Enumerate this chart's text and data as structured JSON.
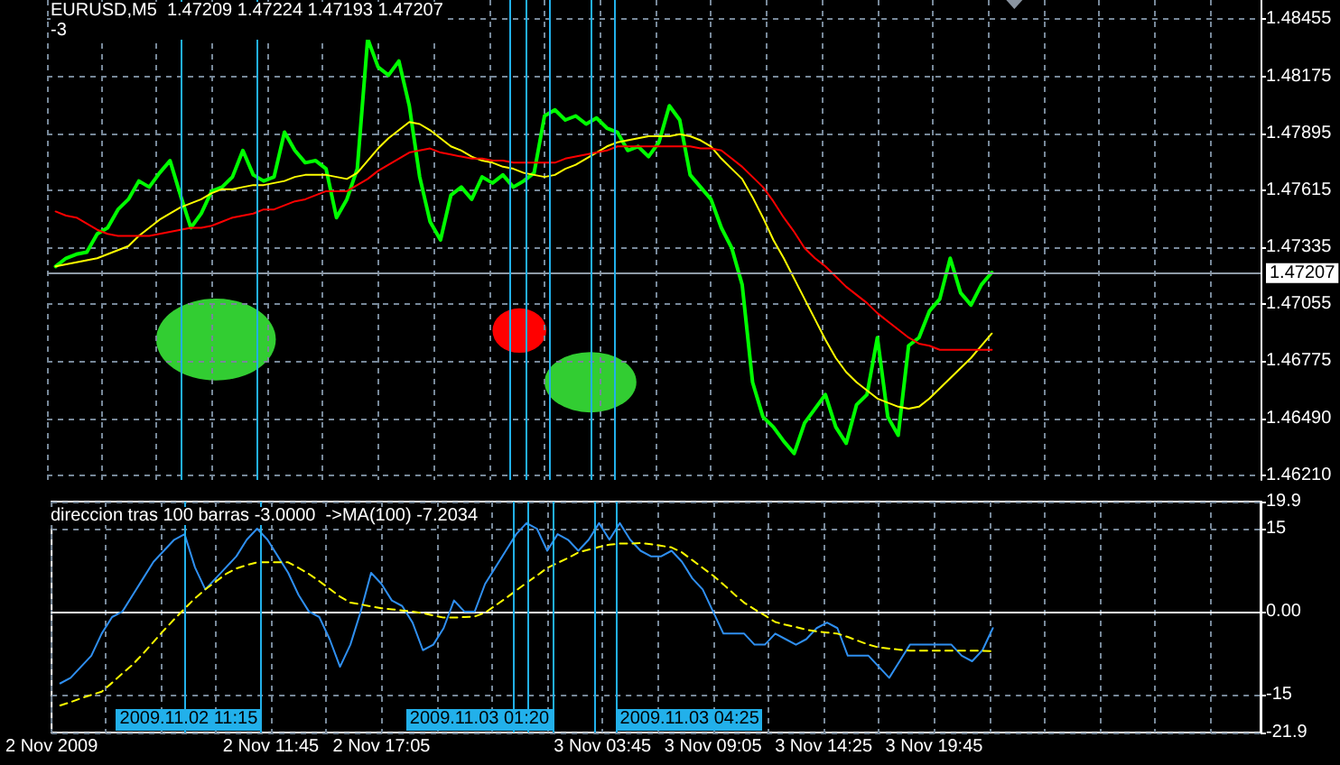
{
  "chart_data": [
    {
      "type": "line",
      "title": "EURUSD,M5  1.47209 1.47224 1.47193 1.47207",
      "subtitle": "-3",
      "x": [
        "2009-11-02T01:35",
        "2009-11-02T02:05",
        "2009-11-02T02:35",
        "2009-11-02T03:05",
        "2009-11-02T03:35",
        "2009-11-02T04:05",
        "2009-11-02T04:35",
        "2009-11-02T05:05",
        "2009-11-02T05:35",
        "2009-11-02T06:05",
        "2009-11-02T06:35",
        "2009-11-02T07:05",
        "2009-11-02T07:35",
        "2009-11-02T08:05",
        "2009-11-02T08:35",
        "2009-11-02T09:05",
        "2009-11-02T09:35",
        "2009-11-02T10:05",
        "2009-11-02T10:35",
        "2009-11-02T11:05",
        "2009-11-02T11:35",
        "2009-11-02T12:05",
        "2009-11-02T12:35",
        "2009-11-02T13:05",
        "2009-11-02T13:35",
        "2009-11-02T14:05",
        "2009-11-02T14:35",
        "2009-11-02T15:05",
        "2009-11-02T15:35",
        "2009-11-02T16:05",
        "2009-11-02T16:35",
        "2009-11-02T17:05",
        "2009-11-02T17:35",
        "2009-11-02T18:05",
        "2009-11-02T18:35",
        "2009-11-02T19:05",
        "2009-11-02T19:35",
        "2009-11-02T20:05",
        "2009-11-02T20:35",
        "2009-11-02T21:05",
        "2009-11-02T21:35",
        "2009-11-02T22:05",
        "2009-11-02T22:35",
        "2009-11-02T23:05",
        "2009-11-02T23:35",
        "2009-11-03T00:05",
        "2009-11-03T00:35",
        "2009-11-03T01:05",
        "2009-11-03T01:35",
        "2009-11-03T02:05",
        "2009-11-03T02:35",
        "2009-11-03T03:05",
        "2009-11-03T03:35",
        "2009-11-03T04:05",
        "2009-11-03T04:35",
        "2009-11-03T05:05",
        "2009-11-03T05:35",
        "2009-11-03T06:05",
        "2009-11-03T06:35",
        "2009-11-03T07:05",
        "2009-11-03T07:35",
        "2009-11-03T08:05",
        "2009-11-03T08:35",
        "2009-11-03T09:05",
        "2009-11-03T09:35",
        "2009-11-03T10:05",
        "2009-11-03T10:35",
        "2009-11-03T11:05",
        "2009-11-03T11:35",
        "2009-11-03T12:05",
        "2009-11-03T12:35",
        "2009-11-03T13:05",
        "2009-11-03T13:35",
        "2009-11-03T14:05",
        "2009-11-03T14:35",
        "2009-11-03T15:05",
        "2009-11-03T15:35",
        "2009-11-03T16:05",
        "2009-11-03T16:35",
        "2009-11-03T17:05",
        "2009-11-03T17:35",
        "2009-11-03T18:05",
        "2009-11-03T18:35",
        "2009-11-03T19:05",
        "2009-11-03T19:35",
        "2009-11-03T20:05",
        "2009-11-03T20:35",
        "2009-11-03T21:05",
        "2009-11-03T21:35",
        "2009-11-03T22:05",
        "2009-11-03T22:35"
      ],
      "series": [
        {
          "color": "#00ff00",
          "values": [
            1.4724,
            1.4728,
            1.473,
            1.4731,
            1.474,
            1.4743,
            1.4752,
            1.4757,
            1.4766,
            1.4763,
            1.477,
            1.4776,
            1.4759,
            1.4743,
            1.475,
            1.4761,
            1.4763,
            1.4768,
            1.4781,
            1.4769,
            1.4766,
            1.4768,
            1.479,
            1.4781,
            1.4775,
            1.4776,
            1.4772,
            1.4748,
            1.4757,
            1.4772,
            1.4836,
            1.4822,
            1.4818,
            1.4825,
            1.4803,
            1.4768,
            1.4746,
            1.4737,
            1.4759,
            1.4763,
            1.4757,
            1.4768,
            1.4765,
            1.4769,
            1.4763,
            1.4766,
            1.477,
            1.4798,
            1.4801,
            1.4796,
            1.4798,
            1.4794,
            1.4797,
            1.4792,
            1.479,
            1.4781,
            1.4783,
            1.4778,
            1.4785,
            1.4803,
            1.4796,
            1.4769,
            1.4763,
            1.4757,
            1.4743,
            1.4733,
            1.4715,
            1.4667,
            1.465,
            1.4645,
            1.4638,
            1.4632,
            1.4647,
            1.4654,
            1.4661,
            1.4645,
            1.4637,
            1.4656,
            1.4661,
            1.4689,
            1.465,
            1.4641,
            1.4685,
            1.4689,
            1.4702,
            1.4708,
            1.4728,
            1.4711,
            1.4705,
            1.4715,
            1.4721
          ]
        },
        {
          "color": "#ffff00",
          "values": [
            1.4724,
            1.4725,
            1.4726,
            1.4727,
            1.4728,
            1.473,
            1.4732,
            1.4734,
            1.4739,
            1.4743,
            1.4747,
            1.475,
            1.4753,
            1.4755,
            1.4757,
            1.476,
            1.4762,
            1.4762,
            1.4763,
            1.4764,
            1.4764,
            1.4765,
            1.4766,
            1.4768,
            1.4769,
            1.4769,
            1.4769,
            1.4768,
            1.4767,
            1.477,
            1.4776,
            1.4782,
            1.4787,
            1.4791,
            1.4795,
            1.4794,
            1.4791,
            1.4787,
            1.4783,
            1.4781,
            1.4778,
            1.4776,
            1.4775,
            1.4773,
            1.4772,
            1.477,
            1.4769,
            1.4768,
            1.4769,
            1.4772,
            1.4774,
            1.4777,
            1.478,
            1.4783,
            1.4785,
            1.4786,
            1.4787,
            1.4788,
            1.4788,
            1.4788,
            1.4789,
            1.4788,
            1.4786,
            1.4783,
            1.4777,
            1.4772,
            1.4767,
            1.4758,
            1.4748,
            1.4737,
            1.4728,
            1.4718,
            1.4708,
            1.4698,
            1.4688,
            1.4679,
            1.4672,
            1.4667,
            1.4663,
            1.4659,
            1.4657,
            1.4655,
            1.4654,
            1.4655,
            1.4659,
            1.4664,
            1.4669,
            1.4674,
            1.4679,
            1.4685,
            1.4691
          ]
        },
        {
          "color": "#ff0000",
          "values": [
            1.4751,
            1.4749,
            1.4748,
            1.4745,
            1.4742,
            1.474,
            1.4739,
            1.4739,
            1.4739,
            1.4739,
            1.474,
            1.4741,
            1.4742,
            1.4743,
            1.4743,
            1.4744,
            1.4746,
            1.4748,
            1.4749,
            1.475,
            1.4752,
            1.4752,
            1.4754,
            1.4756,
            1.4757,
            1.4759,
            1.4761,
            1.4761,
            1.4761,
            1.4764,
            1.4767,
            1.4771,
            1.4774,
            1.4777,
            1.478,
            1.4781,
            1.4782,
            1.478,
            1.4779,
            1.4778,
            1.4777,
            1.4777,
            1.4776,
            1.4776,
            1.4775,
            1.4775,
            1.4775,
            1.4775,
            1.4775,
            1.4777,
            1.4778,
            1.4779,
            1.478,
            1.4781,
            1.4783,
            1.4783,
            1.4783,
            1.4783,
            1.4783,
            1.4783,
            1.4783,
            1.4783,
            1.4782,
            1.4782,
            1.4781,
            1.4777,
            1.4773,
            1.4768,
            1.4763,
            1.4756,
            1.4748,
            1.4741,
            1.4733,
            1.4728,
            1.4724,
            1.4719,
            1.4714,
            1.471,
            1.4706,
            1.4701,
            1.4697,
            1.4693,
            1.4689,
            1.4686,
            1.4685,
            1.4683,
            1.4683,
            1.4683,
            1.4683,
            1.4683,
            1.4683
          ]
        }
      ],
      "xlim": [
        "2009-11-02T01:10",
        "2009-11-04T11:30"
      ],
      "xticks": [
        {
          "value": "2009-11-02T01:10",
          "label": null
        },
        {
          "value": "2009-11-02T03:45",
          "label": null
        },
        {
          "value": "2009-11-02T06:25",
          "label": null
        },
        {
          "value": "2009-11-02T09:05",
          "label": null
        },
        {
          "value": "2009-11-02T11:45",
          "label": null
        },
        {
          "value": "2009-11-02T14:25",
          "label": null
        },
        {
          "value": "2009-11-02T17:05",
          "label": null
        },
        {
          "value": "2009-11-02T19:45",
          "label": null
        },
        {
          "value": "2009-11-02T22:25",
          "label": null
        },
        {
          "value": "2009-11-03T01:05",
          "label": null
        },
        {
          "value": "2009-11-03T03:45",
          "label": null
        },
        {
          "value": "2009-11-03T06:25",
          "label": null
        },
        {
          "value": "2009-11-03T09:05",
          "label": null
        },
        {
          "value": "2009-11-03T11:45",
          "label": null
        },
        {
          "value": "2009-11-03T14:25",
          "label": null
        },
        {
          "value": "2009-11-03T17:05",
          "label": null
        },
        {
          "value": "2009-11-03T19:45",
          "label": null
        },
        {
          "value": "2009-11-03T22:25",
          "label": null
        },
        {
          "value": "2009-11-04T01:05",
          "label": null
        },
        {
          "value": "2009-11-04T03:45",
          "label": null
        },
        {
          "value": "2009-11-04T06:25",
          "label": null
        },
        {
          "value": "2009-11-04T09:05",
          "label": null
        }
      ],
      "ylim": [
        1.4619,
        1.4855
      ],
      "yticks": [
        {
          "value": 1.4621,
          "label": "1.46210"
        },
        {
          "value": 1.4649,
          "label": "1.46490"
        },
        1.46775,
        1.47055,
        1.47335,
        1.47615,
        1.47895,
        1.48175,
        1.48455
      ],
      "ref_lines": [
        {
          "axis": "y",
          "value": 1.47207,
          "label": "1.47207",
          "color": "#8e9aa6"
        },
        {
          "axis": "x",
          "value": "2009-11-02T07:35",
          "color": "#22b0ea"
        },
        {
          "axis": "x",
          "value": "2009-11-02T11:15",
          "color": "#22b0ea"
        },
        {
          "axis": "x",
          "value": "2009-11-02T23:25",
          "color": "#22b0ea"
        },
        {
          "axis": "x",
          "value": "2009-11-03T00:10",
          "color": "#22b0ea"
        },
        {
          "axis": "x",
          "value": "2009-11-03T01:20",
          "color": "#22b0ea"
        },
        {
          "axis": "x",
          "value": "2009-11-03T03:20",
          "color": "#22b0ea"
        },
        {
          "axis": "x",
          "value": "2009-11-03T04:25",
          "color": "#22b0ea"
        }
      ],
      "grid": true,
      "marker": "none",
      "tick_labels": "y"
    },
    {
      "type": "line",
      "title": "direccion tras 100 barras -3.0000  ->MA(100) -7.2034",
      "x": [
        "2009-11-02T01:35",
        "2009-11-02T02:05",
        "2009-11-02T02:35",
        "2009-11-02T03:05",
        "2009-11-02T03:35",
        "2009-11-02T04:05",
        "2009-11-02T04:35",
        "2009-11-02T05:05",
        "2009-11-02T05:35",
        "2009-11-02T06:05",
        "2009-11-02T06:35",
        "2009-11-02T07:05",
        "2009-11-02T07:35",
        "2009-11-02T08:05",
        "2009-11-02T08:35",
        "2009-11-02T09:05",
        "2009-11-02T09:35",
        "2009-11-02T10:05",
        "2009-11-02T10:35",
        "2009-11-02T11:05",
        "2009-11-02T11:35",
        "2009-11-02T12:05",
        "2009-11-02T12:35",
        "2009-11-02T13:05",
        "2009-11-02T13:35",
        "2009-11-02T14:05",
        "2009-11-02T14:35",
        "2009-11-02T15:05",
        "2009-11-02T15:35",
        "2009-11-02T16:05",
        "2009-11-02T16:35",
        "2009-11-02T17:05",
        "2009-11-02T17:35",
        "2009-11-02T18:05",
        "2009-11-02T18:35",
        "2009-11-02T19:05",
        "2009-11-02T19:35",
        "2009-11-02T20:05",
        "2009-11-02T20:35",
        "2009-11-02T21:05",
        "2009-11-02T21:35",
        "2009-11-02T22:05",
        "2009-11-02T22:35",
        "2009-11-02T23:05",
        "2009-11-02T23:35",
        "2009-11-03T00:05",
        "2009-11-03T00:35",
        "2009-11-03T01:05",
        "2009-11-03T01:35",
        "2009-11-03T02:05",
        "2009-11-03T02:35",
        "2009-11-03T03:05",
        "2009-11-03T03:35",
        "2009-11-03T04:05",
        "2009-11-03T04:35",
        "2009-11-03T05:05",
        "2009-11-03T05:35",
        "2009-11-03T06:05",
        "2009-11-03T06:35",
        "2009-11-03T07:05",
        "2009-11-03T07:35",
        "2009-11-03T08:05",
        "2009-11-03T08:35",
        "2009-11-03T09:05",
        "2009-11-03T09:35",
        "2009-11-03T10:05",
        "2009-11-03T10:35",
        "2009-11-03T11:05",
        "2009-11-03T11:35",
        "2009-11-03T12:05",
        "2009-11-03T12:35",
        "2009-11-03T13:05",
        "2009-11-03T13:35",
        "2009-11-03T14:05",
        "2009-11-03T14:35",
        "2009-11-03T15:05",
        "2009-11-03T15:35",
        "2009-11-03T16:05",
        "2009-11-03T16:35",
        "2009-11-03T17:05",
        "2009-11-03T17:35",
        "2009-11-03T18:05",
        "2009-11-03T18:35",
        "2009-11-03T19:05",
        "2009-11-03T19:35",
        "2009-11-03T20:05",
        "2009-11-03T20:35",
        "2009-11-03T21:05",
        "2009-11-03T21:35",
        "2009-11-03T22:05",
        "2009-11-03T22:35"
      ],
      "series": [
        {
          "color": "#2f8ff0",
          "values": [
            -13,
            -12,
            -10,
            -8,
            -4,
            -1,
            0,
            3,
            6,
            9,
            11,
            13,
            14,
            8,
            4,
            6,
            8,
            10,
            13,
            15,
            13,
            10,
            7,
            3,
            0,
            -1,
            -5,
            -10,
            -6,
            0,
            7,
            5,
            2,
            1,
            -2,
            -7,
            -6,
            -3,
            2,
            0,
            0,
            5,
            8,
            11,
            14,
            16,
            15,
            11,
            14,
            13,
            11,
            13,
            16,
            13,
            16,
            13,
            11,
            10,
            10,
            11,
            9,
            6,
            4,
            0,
            -4,
            -4,
            -4,
            -6,
            -6,
            -4,
            -5,
            -6,
            -5,
            -3,
            -2,
            -3,
            -8,
            -8,
            -8,
            -10,
            -12,
            -9,
            -6,
            -6,
            -6,
            -6,
            -6,
            -8,
            -9,
            -7,
            -3
          ]
        },
        {
          "color": "#ffff00",
          "line_style": "dashed",
          "values": [
            -17.0,
            -16.4,
            -15.7,
            -15.1,
            -14.5,
            -12.9,
            -11.2,
            -9.6,
            -7.6,
            -5.5,
            -3.4,
            -1.4,
            0.5,
            2.4,
            4.0,
            5.4,
            6.8,
            7.8,
            8.4,
            8.9,
            8.9,
            8.9,
            8.9,
            7.9,
            6.8,
            5.5,
            4.1,
            2.7,
            1.6,
            1.3,
            0.9,
            0.6,
            0.4,
            0.2,
            0,
            -0.3,
            -0.7,
            -1.1,
            -1.1,
            -1.0,
            -0.9,
            -0.2,
            1.1,
            2.4,
            3.8,
            5.2,
            6.5,
            7.9,
            8.8,
            9.7,
            10.7,
            11.2,
            11.7,
            12.1,
            12.3,
            12.3,
            12.4,
            12.2,
            11.9,
            11.6,
            10.7,
            9.3,
            7.9,
            6.5,
            4.9,
            3.2,
            1.6,
            0.4,
            -0.7,
            -1.9,
            -2.4,
            -2.8,
            -3.3,
            -3.6,
            -3.8,
            -4.0,
            -4.6,
            -5.3,
            -6.0,
            -6.5,
            -6.7,
            -6.9,
            -7.1,
            -7.1,
            -7.1,
            -7.1,
            -7.1,
            -7.1,
            -7.1,
            -7.1,
            -7.2
          ]
        }
      ],
      "xlim": [
        "2009-11-02T01:10",
        "2009-11-04T11:30"
      ],
      "xticks": [
        {
          "value": "2009-11-02T01:10",
          "label": "2 Nov 2009"
        },
        {
          "value": "2009-11-02T03:45",
          "label": null
        },
        {
          "value": "2009-11-02T06:25",
          "label": null
        },
        {
          "value": "2009-11-02T09:05",
          "label": null
        },
        {
          "value": "2009-11-02T11:45",
          "label": "2 Nov 11:45"
        },
        {
          "value": "2009-11-02T14:25",
          "label": null
        },
        {
          "value": "2009-11-02T17:05",
          "label": "2 Nov 17:05"
        },
        {
          "value": "2009-11-02T19:45",
          "label": null
        },
        {
          "value": "2009-11-02T22:25",
          "label": null
        },
        {
          "value": "2009-11-03T01:05",
          "label": null
        },
        {
          "value": "2009-11-03T03:45",
          "label": "3 Nov 03:45"
        },
        {
          "value": "2009-11-03T06:25",
          "label": null
        },
        {
          "value": "2009-11-03T09:05",
          "label": "3 Nov 09:05"
        },
        {
          "value": "2009-11-03T11:45",
          "label": null
        },
        {
          "value": "2009-11-03T14:25",
          "label": "3 Nov 14:25"
        },
        {
          "value": "2009-11-03T17:05",
          "label": null
        },
        {
          "value": "2009-11-03T19:45",
          "label": "3 Nov 19:45"
        },
        {
          "value": "2009-11-03T22:25",
          "label": null
        },
        {
          "value": "2009-11-04T01:05",
          "label": null
        },
        {
          "value": "2009-11-04T03:45",
          "label": null
        },
        {
          "value": "2009-11-04T06:25",
          "label": null
        },
        {
          "value": "2009-11-04T09:05",
          "label": null
        }
      ],
      "ylim": [
        -21.9,
        19.9
      ],
      "yticks": [
        -21.9,
        -15,
        {
          "value": 0,
          "label": "0.00"
        },
        15,
        19.9
      ],
      "ref_lines": [
        {
          "axis": "x",
          "value": "2009-11-02T07:35",
          "color": "#22b0ea"
        },
        {
          "axis": "x",
          "value": "2009-11-02T11:15",
          "label": "2009.11.02 11:15",
          "color": "#22b0ea"
        },
        {
          "axis": "x",
          "value": "2009-11-02T23:25",
          "color": "#22b0ea"
        },
        {
          "axis": "x",
          "value": "2009-11-03T00:10",
          "color": "#22b0ea"
        },
        {
          "axis": "x",
          "value": "2009-11-03T01:20",
          "label": "2009.11.03 01:20",
          "color": "#22b0ea"
        },
        {
          "axis": "x",
          "value": "2009-11-03T03:20",
          "color": "#22b0ea"
        },
        {
          "axis": "x",
          "value": "2009-11-03T04:25",
          "label": "2009.11.03 04:25",
          "color": "#22b0ea"
        }
      ],
      "grid": true,
      "marker": "none"
    }
  ]
}
